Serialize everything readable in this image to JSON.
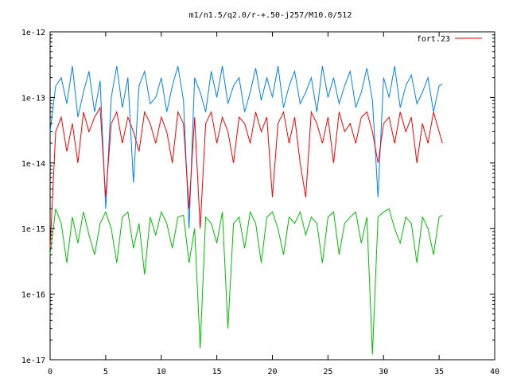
{
  "chart_data": {
    "type": "line",
    "title": "m1/n1.5/q2.0/r-+.50-j257/M10.0/512",
    "xlabel": "",
    "ylabel": "",
    "xlim": [
      0,
      40
    ],
    "ylim": [
      1e-17,
      1e-12
    ],
    "yscale": "log",
    "grid": false,
    "legend_position": "top-right",
    "x_ticks": [
      0,
      5,
      10,
      15,
      20,
      25,
      30,
      35,
      40
    ],
    "x_tick_labels": [
      "0",
      "5",
      "10",
      "15",
      "20",
      "25",
      "30",
      "35",
      "40"
    ],
    "y_ticks": [
      1e-17,
      1e-16,
      1e-15,
      1e-14,
      1e-13,
      1e-12
    ],
    "y_tick_labels": [
      "1e-17",
      "1e-16",
      "1e-15",
      "1e-14",
      "1e-13",
      "1e-12"
    ],
    "series": [
      {
        "name": "fort.23",
        "color": "#ff0000",
        "x": [
          0,
          0.5,
          1,
          1.5,
          2,
          2.5,
          3,
          3.5,
          4,
          4.5,
          5,
          5.5,
          6,
          6.5,
          7,
          7.5,
          8,
          8.5,
          9,
          9.5,
          10,
          10.5,
          11,
          11.5,
          12,
          12.5,
          13,
          13.5,
          14,
          14.5,
          15,
          15.5,
          16,
          16.5,
          17,
          17.5,
          18,
          18.5,
          19,
          19.5,
          20,
          20.5,
          21,
          21.5,
          22,
          22.5,
          23,
          23.5,
          24,
          24.5,
          25,
          25.5,
          26,
          26.5,
          27,
          27.5,
          28,
          28.5,
          29,
          29.5,
          30,
          30.5,
          31,
          31.5,
          32,
          32.5,
          33,
          33.5,
          34,
          34.5,
          35,
          35.3
        ],
        "values": [
          5e-16,
          3e-14,
          5e-14,
          1.5e-14,
          4e-14,
          1e-14,
          6e-14,
          3e-14,
          5e-14,
          7e-14,
          3e-15,
          4e-14,
          6e-14,
          2e-14,
          5e-14,
          3e-14,
          1.5e-14,
          6e-14,
          4e-14,
          2e-14,
          5e-14,
          3e-14,
          1e-14,
          6e-14,
          4e-14,
          2e-15,
          5e-14,
          1e-15,
          4e-14,
          6e-14,
          2e-14,
          5e-14,
          3e-14,
          1e-14,
          5e-14,
          4e-14,
          2e-14,
          6e-14,
          3e-14,
          5e-14,
          3e-15,
          4e-14,
          6e-14,
          2e-14,
          5e-14,
          1e-14,
          3e-15,
          6e-14,
          4e-14,
          2e-14,
          5e-14,
          1e-14,
          6e-14,
          3e-14,
          4e-14,
          2e-14,
          5e-14,
          6e-14,
          3e-14,
          1e-14,
          4e-14,
          5e-14,
          2e-14,
          6e-14,
          3e-14,
          5e-14,
          1e-14,
          4e-14,
          2e-14,
          6e-14,
          3e-14,
          2e-14
        ]
      },
      {
        "name": "",
        "color": "#0080ff",
        "x": [
          0,
          0.5,
          1,
          1.5,
          2,
          2.5,
          3,
          3.5,
          4,
          4.5,
          5,
          5.5,
          6,
          6.5,
          7,
          7.5,
          8,
          8.5,
          9,
          9.5,
          10,
          10.5,
          11,
          11.5,
          12,
          12.5,
          13,
          13.5,
          14,
          14.5,
          15,
          15.5,
          16,
          16.5,
          17,
          17.5,
          18,
          18.5,
          19,
          19.5,
          20,
          20.5,
          21,
          21.5,
          22,
          22.5,
          23,
          23.5,
          24,
          24.5,
          25,
          25.5,
          26,
          26.5,
          27,
          27.5,
          28,
          28.5,
          29,
          29.5,
          30,
          30.5,
          31,
          31.5,
          32,
          32.5,
          33,
          33.5,
          34,
          34.5,
          35,
          35.3
        ],
        "values": [
          3e-14,
          1.5e-13,
          2e-13,
          8e-14,
          3e-13,
          5e-14,
          1.2e-13,
          2.5e-13,
          6e-14,
          1.8e-13,
          2e-15,
          1e-13,
          3e-13,
          7e-14,
          2e-13,
          5e-15,
          1.5e-13,
          2.5e-13,
          8e-14,
          1e-13,
          2e-13,
          6e-14,
          1.5e-13,
          3e-13,
          9e-14,
          1e-15,
          2e-13,
          1.2e-13,
          6e-14,
          2.5e-13,
          1e-13,
          3e-13,
          8e-14,
          1.5e-13,
          2e-13,
          6e-14,
          1.2e-13,
          2.8e-13,
          9e-14,
          2e-13,
          1e-13,
          3e-13,
          7e-14,
          1.5e-13,
          2.5e-13,
          8e-14,
          1.2e-13,
          2e-13,
          6e-14,
          3e-13,
          1e-13,
          2e-13,
          8e-14,
          1.5e-13,
          2.5e-13,
          7e-14,
          1.2e-13,
          2.8e-13,
          9e-14,
          3e-15,
          2e-13,
          1e-13,
          3e-13,
          7e-14,
          1.5e-13,
          2.2e-13,
          8e-14,
          1.2e-13,
          2e-13,
          6e-14,
          1.5e-13,
          1.6e-13
        ]
      },
      {
        "name": "",
        "color": "#00c000",
        "x": [
          0,
          0.5,
          1,
          1.5,
          2,
          2.5,
          3,
          3.5,
          4,
          4.5,
          5,
          5.5,
          6,
          6.5,
          7,
          7.5,
          8,
          8.5,
          9,
          9.5,
          10,
          10.5,
          11,
          11.5,
          12,
          12.5,
          13,
          13.5,
          14,
          14.5,
          15,
          15.5,
          16,
          16.5,
          17,
          17.5,
          18,
          18.5,
          19,
          19.5,
          20,
          20.5,
          21,
          21.5,
          22,
          22.5,
          23,
          23.5,
          24,
          24.5,
          25,
          25.5,
          26,
          26.5,
          27,
          27.5,
          28,
          28.5,
          29,
          29.5,
          30,
          30.5,
          31,
          31.5,
          32,
          32.5,
          33,
          33.5,
          34,
          34.5,
          35,
          35.3
        ],
        "values": [
          4e-16,
          2e-15,
          1.2e-15,
          3e-16,
          1.5e-15,
          6e-16,
          1.8e-15,
          8e-16,
          4e-16,
          1.2e-15,
          1.8e-15,
          1e-15,
          3e-16,
          1.5e-15,
          1.8e-15,
          5e-16,
          1.2e-15,
          2e-16,
          1.5e-15,
          8e-16,
          1.8e-15,
          1.2e-15,
          5e-16,
          1.5e-15,
          1.6e-15,
          3e-16,
          1e-15,
          1.5e-17,
          1.5e-15,
          1.2e-15,
          6e-16,
          1.8e-15,
          3e-17,
          1.2e-15,
          1.5e-15,
          5e-16,
          1.8e-15,
          1.2e-15,
          3e-16,
          1.5e-15,
          1.8e-15,
          1e-15,
          4e-16,
          1.5e-15,
          1.2e-15,
          1.8e-15,
          8e-16,
          1.5e-15,
          1.2e-15,
          3e-16,
          1.5e-15,
          1.8e-15,
          4e-16,
          1.2e-15,
          1.5e-15,
          1.8e-15,
          6e-16,
          1.5e-15,
          1.2e-17,
          1.5e-15,
          1.8e-15,
          2e-15,
          1e-15,
          6e-16,
          1.5e-15,
          1.2e-15,
          3e-16,
          1.5e-15,
          1e-15,
          4e-16,
          1.5e-15,
          1.6e-15
        ]
      }
    ]
  }
}
